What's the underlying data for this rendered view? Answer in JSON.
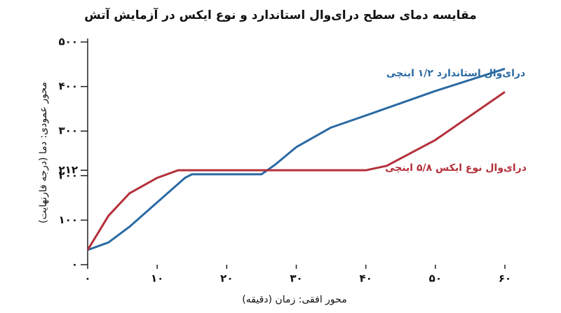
{
  "chart_data": {
    "type": "line",
    "title": "مقایسه دمای سطح درای‌وال استاندارد و نوع ایکس در آزمایش آتش",
    "x_label": "محور افقی: زمان (دقیقه)",
    "y_label": "محور عمودی: دما (درجه فارنهایت)",
    "xlim": [
      0,
      60
    ],
    "xticks": [
      {
        "value": 0,
        "label": "۰"
      },
      {
        "value": 10,
        "label": "۱۰"
      },
      {
        "value": 20,
        "label": "۲۰"
      },
      {
        "value": 30,
        "label": "۳۰"
      },
      {
        "value": 40,
        "label": "۴۰"
      },
      {
        "value": 50,
        "label": "۵۰"
      },
      {
        "value": 60,
        "label": "۶۰"
      }
    ],
    "ylim": [
      0,
      500
    ],
    "yticks": [
      {
        "value": 0,
        "label": "۰"
      },
      {
        "value": 100,
        "label": "۱۰۰"
      },
      {
        "value": 200,
        "label": "۲۰۰"
      },
      {
        "value": 212,
        "label": "۲۱۲"
      },
      {
        "value": 300,
        "label": "۳۰۰"
      },
      {
        "value": 400,
        "label": "۴۰۰"
      },
      {
        "value": 500,
        "label": "۵۰۰"
      }
    ],
    "series": [
      {
        "name": "درای‌وال استاندارد ۱/۲ اینچی",
        "color": "#2a6aa3",
        "x": [
          0,
          3,
          6,
          10,
          14,
          15,
          25,
          27,
          30,
          35,
          40,
          50,
          60
        ],
        "values": [
          33,
          50,
          85,
          140,
          195,
          203,
          203,
          225,
          264,
          308,
          335,
          390,
          440
        ]
      },
      {
        "name": "درای‌وال نوع ایکس ۵/۸ اینچی",
        "color": "#b3303a",
        "x": [
          0,
          3,
          6,
          10,
          13,
          40,
          43,
          50,
          60
        ],
        "values": [
          33,
          110,
          160,
          195,
          212,
          212,
          222,
          280,
          388
        ]
      }
    ]
  }
}
